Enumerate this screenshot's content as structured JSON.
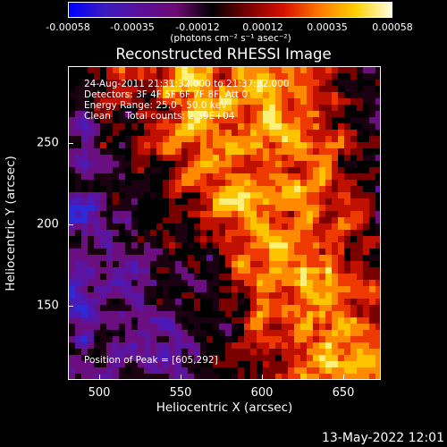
{
  "colorbar": {
    "ticks": [
      "-0.00058",
      "-0.00035",
      "-0.00012",
      "0.00012",
      "0.00035",
      "0.00058"
    ],
    "units": "(photons cm⁻² s⁻¹ asec⁻²)",
    "gradient_colors": [
      "#0000ff",
      "#3a1cc0",
      "#5a0f9a",
      "#6d0a72",
      "#000000",
      "#7a0000",
      "#d81000",
      "#ff7a00",
      "#ffd000",
      "#ffffe0"
    ]
  },
  "title": "Reconstructed RHESSI Image",
  "info": {
    "time": "24-Aug-2011 21:31:32.000 to 21:37:32.000",
    "detectors": "Detectors: 3F 4F 5F 6F 7F 8F, Att 0",
    "energy": "Energy Range: 25.0 - 50.0 keV",
    "clean": "Clean     Total counts: 2.39E+04",
    "peak": "Position of Peak = [605,292]"
  },
  "axes": {
    "xlabel": "Heliocentric X (arcsec)",
    "ylabel": "Heliocentric Y (arcsec)",
    "x_ticks": [
      "500",
      "550",
      "600",
      "650"
    ],
    "y_ticks": [
      "250",
      "200",
      "150"
    ],
    "x_range": [
      480,
      672
    ],
    "y_range": [
      102,
      293
    ]
  },
  "footer": "13-May-2022 12:01"
}
